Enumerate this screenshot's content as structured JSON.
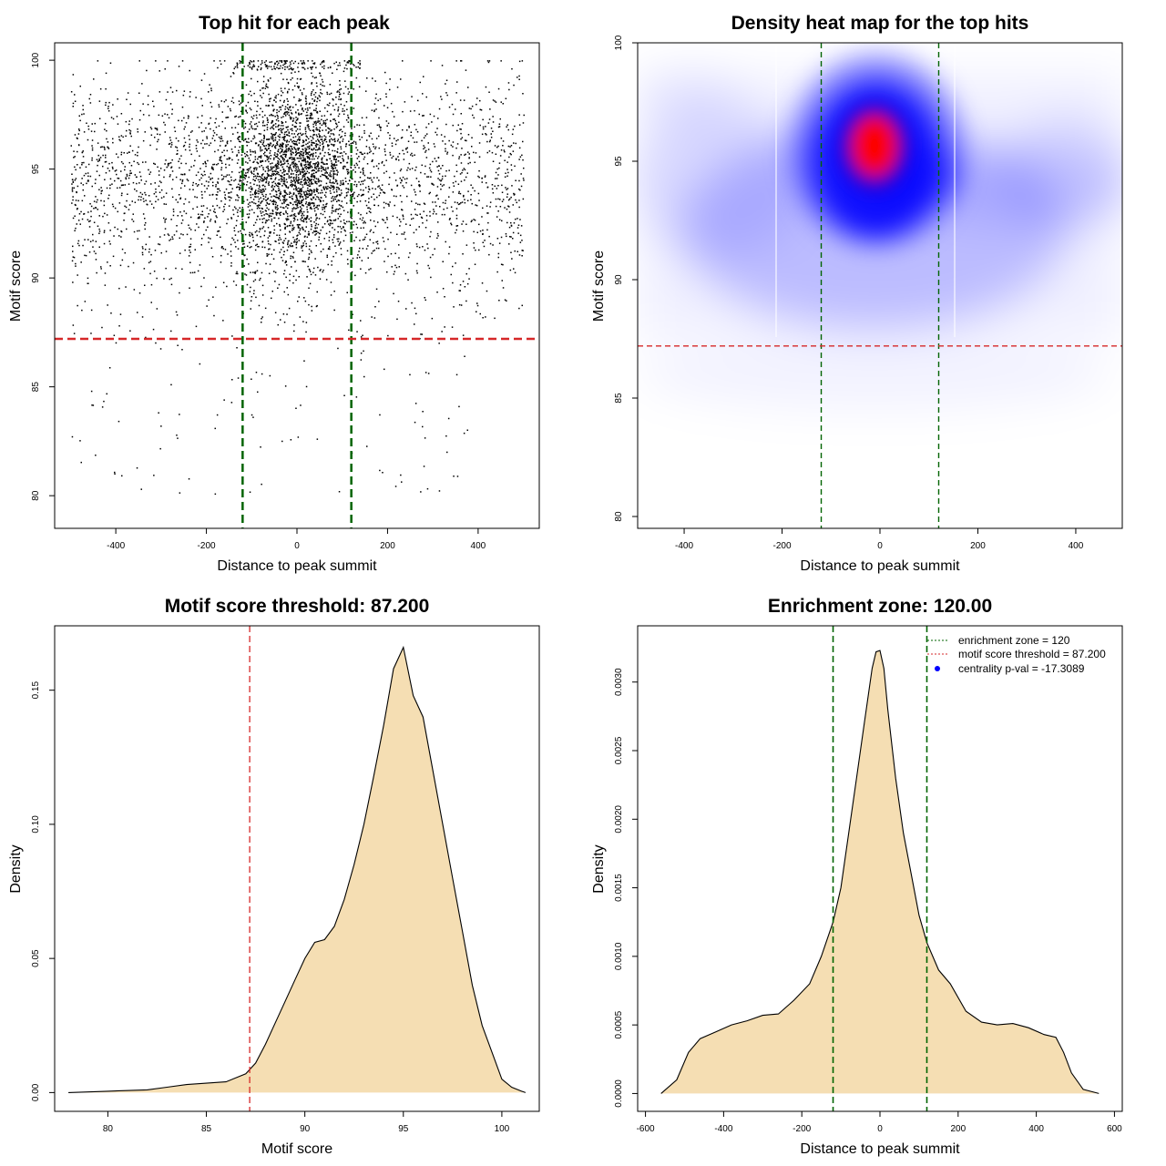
{
  "chart_data": [
    {
      "type": "scatter",
      "title": "Top hit for each peak",
      "xlabel": "Distance to peak summit",
      "ylabel": "Motif score",
      "xlim": [
        -535,
        535
      ],
      "ylim": [
        78.5,
        100.8
      ],
      "xticks": [
        -400,
        -200,
        0,
        200,
        400
      ],
      "yticks": [
        80,
        85,
        90,
        95,
        100
      ],
      "xtick_labels": [
        "-400",
        "-200",
        "0",
        "200",
        "400"
      ],
      "ytick_labels": [
        "80",
        "85",
        "90",
        "95",
        "100"
      ],
      "x_range_of_points": [
        -500,
        500
      ],
      "y_range_of_points": [
        79.2,
        100
      ],
      "points_center_region": {
        "x": [
          -110,
          110
        ],
        "y": [
          90,
          99.5
        ]
      },
      "vlines": [
        -120,
        120
      ],
      "hline": 87.2,
      "vline_color": "#006400",
      "hline_color": "#d62728",
      "grid": false
    },
    {
      "type": "heatmap",
      "title": "Density heat map for the top hits",
      "xlabel": "Distance to peak summit",
      "ylabel": "Motif score",
      "xlim": [
        -495,
        495
      ],
      "ylim": [
        79.5,
        100.0
      ],
      "xticks": [
        -400,
        -200,
        0,
        200,
        400
      ],
      "yticks": [
        80,
        85,
        90,
        95,
        100
      ],
      "xtick_labels": [
        "-400",
        "-200",
        "0",
        "200",
        "400"
      ],
      "ytick_labels": [
        "80",
        "85",
        "90",
        "95",
        "100"
      ],
      "peak": {
        "x": -5,
        "y": 95.5
      },
      "colors": [
        "#ffffff",
        "#0000ff",
        "#ff0000"
      ],
      "vlines": [
        -120,
        120
      ],
      "hline": 87.2,
      "vline_color": "#006400",
      "hline_color": "#d62728",
      "grid": false
    },
    {
      "type": "area",
      "title": "Motif score threshold: 87.200",
      "xlabel": "Motif score",
      "ylabel": "Density",
      "xlim": [
        77.3,
        101.9
      ],
      "ylim": [
        -0.007,
        0.174
      ],
      "xticks": [
        80,
        85,
        90,
        95,
        100
      ],
      "yticks": [
        0.0,
        0.05,
        0.1,
        0.15
      ],
      "xtick_labels": [
        "80",
        "85",
        "90",
        "95",
        "100"
      ],
      "ytick_labels": [
        "0.00",
        "0.05",
        "0.10",
        "0.15"
      ],
      "x": [
        78,
        80,
        82,
        83,
        84,
        85,
        86,
        87,
        87.5,
        88,
        88.5,
        89,
        89.5,
        90,
        90.5,
        91,
        91.5,
        92,
        92.5,
        93,
        93.5,
        94,
        94.5,
        95,
        95.5,
        96,
        96.5,
        97,
        97.5,
        98,
        98.5,
        99,
        99.5,
        100,
        100.5,
        101,
        101.2
      ],
      "y": [
        0,
        0.0005,
        0.001,
        0.002,
        0.003,
        0.0035,
        0.004,
        0.007,
        0.011,
        0.018,
        0.026,
        0.034,
        0.042,
        0.05,
        0.056,
        0.057,
        0.062,
        0.072,
        0.085,
        0.1,
        0.118,
        0.137,
        0.158,
        0.166,
        0.148,
        0.14,
        0.12,
        0.1,
        0.08,
        0.06,
        0.04,
        0.025,
        0.015,
        0.005,
        0.002,
        0.0005,
        0
      ],
      "vlines": [
        87.2
      ],
      "fill_color": "#f5deb3",
      "vline_color": "#d62728",
      "grid": false
    },
    {
      "type": "area",
      "title": "Enrichment zone: 120.00",
      "xlabel": "Distance to peak summit",
      "ylabel": "Density",
      "xlim": [
        -620,
        620
      ],
      "ylim": [
        -0.00013,
        0.00341
      ],
      "xticks": [
        -600,
        -400,
        -200,
        0,
        200,
        400,
        600
      ],
      "yticks": [
        0,
        0.0005,
        0.001,
        0.0015,
        0.002,
        0.0025,
        0.003
      ],
      "xtick_labels": [
        "-600",
        "-400",
        "-200",
        "0",
        "200",
        "400",
        "600"
      ],
      "ytick_labels": [
        "0.0000",
        "0.0005",
        "0.0010",
        "0.0015",
        "0.0020",
        "0.0025",
        "0.0030"
      ],
      "x": [
        -560,
        -520,
        -490,
        -460,
        -420,
        -380,
        -340,
        -300,
        -260,
        -220,
        -180,
        -150,
        -120,
        -100,
        -80,
        -60,
        -40,
        -20,
        -10,
        0,
        10,
        20,
        40,
        60,
        80,
        100,
        120,
        150,
        180,
        220,
        260,
        300,
        340,
        380,
        420,
        450,
        470,
        490,
        520,
        560
      ],
      "y": [
        0,
        0.0001,
        0.0003,
        0.0004,
        0.00045,
        0.0005,
        0.00053,
        0.00057,
        0.00058,
        0.00068,
        0.0008,
        0.001,
        0.00125,
        0.0015,
        0.0019,
        0.0023,
        0.0027,
        0.0031,
        0.00322,
        0.00323,
        0.0031,
        0.0028,
        0.0023,
        0.0019,
        0.0016,
        0.0013,
        0.0011,
        0.0009,
        0.0008,
        0.0006,
        0.00052,
        0.0005,
        0.00051,
        0.00048,
        0.00043,
        0.00041,
        0.0003,
        0.00015,
        3e-05,
        0
      ],
      "vlines": [
        -120,
        120
      ],
      "fill_color": "#f5deb3",
      "vline_color": "#006400",
      "legend": {
        "position": "top-right",
        "entries": [
          {
            "label": "enrichment zone = 120",
            "color": "#006400",
            "style": "dotted-line"
          },
          {
            "label": "motif score threshold = 87.200",
            "color": "#d62728",
            "style": "dotted-line"
          },
          {
            "label": "centrality p-val = -17.3089",
            "color": "#0000ff",
            "style": "point"
          }
        ]
      },
      "grid": false
    }
  ]
}
